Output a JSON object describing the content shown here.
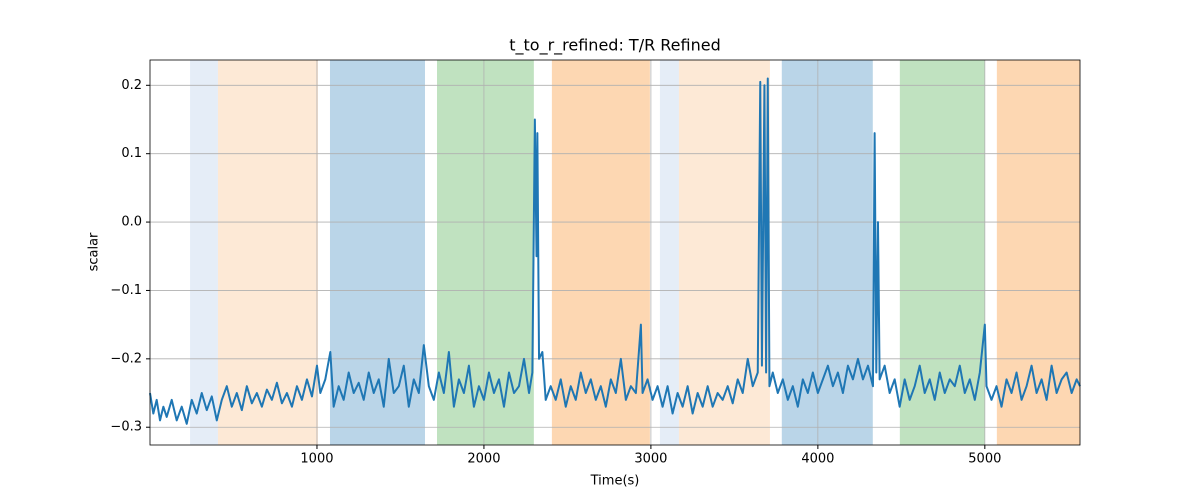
{
  "chart_data": {
    "type": "line",
    "title": "t_to_r_refined: T/R Refined",
    "x_label": "Time(s)",
    "y_label": "scalar",
    "xlim": [
      0,
      5570
    ],
    "ylim": [
      -0.326,
      0.237
    ],
    "xticks": [
      1000,
      2000,
      3000,
      4000,
      5000
    ],
    "yticks": [
      {
        "value": -0.3,
        "label": "−0.3"
      },
      {
        "value": -0.2,
        "label": "−0.2"
      },
      {
        "value": -0.1,
        "label": "−0.1"
      },
      {
        "value": 0.0,
        "label": "0.0"
      },
      0.1,
      0.2
    ],
    "grid": true,
    "spans": [
      {
        "start": 240,
        "end": 407,
        "color": "#e5edf7"
      },
      {
        "start": 407,
        "end": 1006,
        "color": "#fde9d6"
      },
      {
        "start": 1078,
        "end": 1647,
        "color": "#bad5e8"
      },
      {
        "start": 1719,
        "end": 2299,
        "color": "#c0e2c0"
      },
      {
        "start": 2407,
        "end": 2994,
        "color": "#fdd7b2"
      },
      {
        "start": 3054,
        "end": 3168,
        "color": "#e5edf7"
      },
      {
        "start": 3168,
        "end": 3713,
        "color": "#fde9d6"
      },
      {
        "start": 3784,
        "end": 4329,
        "color": "#bad5e8"
      },
      {
        "start": 4491,
        "end": 5000,
        "color": "#c0e2c0"
      },
      {
        "start": 5072,
        "end": 5570,
        "color": "#fdd7b2"
      }
    ],
    "series": [
      {
        "color": "#1f77b4",
        "x": [
          0,
          20,
          40,
          60,
          80,
          100,
          130,
          160,
          190,
          220,
          250,
          280,
          310,
          340,
          370,
          400,
          430,
          460,
          490,
          520,
          550,
          580,
          610,
          640,
          670,
          700,
          730,
          760,
          790,
          820,
          850,
          880,
          910,
          940,
          970,
          1000,
          1020,
          1050,
          1080,
          1100,
          1130,
          1160,
          1190,
          1220,
          1250,
          1280,
          1310,
          1340,
          1370,
          1400,
          1430,
          1460,
          1490,
          1520,
          1550,
          1580,
          1610,
          1640,
          1670,
          1700,
          1730,
          1760,
          1790,
          1820,
          1850,
          1880,
          1910,
          1940,
          1970,
          2000,
          2030,
          2060,
          2090,
          2120,
          2150,
          2180,
          2210,
          2240,
          2270,
          2290,
          2305,
          2315,
          2320,
          2330,
          2350,
          2370,
          2400,
          2430,
          2460,
          2490,
          2520,
          2550,
          2580,
          2610,
          2640,
          2670,
          2700,
          2730,
          2760,
          2790,
          2820,
          2850,
          2880,
          2910,
          2940,
          2950,
          2980,
          3010,
          3040,
          3070,
          3100,
          3130,
          3160,
          3190,
          3220,
          3250,
          3280,
          3310,
          3340,
          3370,
          3400,
          3430,
          3460,
          3490,
          3520,
          3550,
          3580,
          3610,
          3640,
          3655,
          3665,
          3680,
          3690,
          3700,
          3710,
          3730,
          3760,
          3790,
          3820,
          3850,
          3880,
          3910,
          3940,
          3970,
          4000,
          4030,
          4060,
          4090,
          4120,
          4150,
          4180,
          4210,
          4240,
          4270,
          4300,
          4330,
          4340,
          4350,
          4360,
          4370,
          4400,
          4430,
          4460,
          4490,
          4520,
          4550,
          4580,
          4610,
          4640,
          4670,
          4700,
          4730,
          4760,
          4790,
          4820,
          4850,
          4880,
          4910,
          4940,
          4970,
          5000,
          5010,
          5040,
          5070,
          5100,
          5130,
          5160,
          5190,
          5220,
          5250,
          5280,
          5310,
          5340,
          5370,
          5400,
          5430,
          5460,
          5490,
          5520,
          5550,
          5570
        ],
        "values": [
          -0.25,
          -0.28,
          -0.26,
          -0.29,
          -0.27,
          -0.285,
          -0.26,
          -0.29,
          -0.27,
          -0.295,
          -0.26,
          -0.28,
          -0.25,
          -0.275,
          -0.255,
          -0.29,
          -0.26,
          -0.24,
          -0.27,
          -0.25,
          -0.275,
          -0.24,
          -0.265,
          -0.25,
          -0.27,
          -0.245,
          -0.26,
          -0.235,
          -0.265,
          -0.25,
          -0.27,
          -0.24,
          -0.26,
          -0.23,
          -0.255,
          -0.21,
          -0.25,
          -0.23,
          -0.19,
          -0.27,
          -0.24,
          -0.26,
          -0.22,
          -0.25,
          -0.235,
          -0.26,
          -0.22,
          -0.25,
          -0.23,
          -0.27,
          -0.2,
          -0.25,
          -0.24,
          -0.21,
          -0.27,
          -0.23,
          -0.25,
          -0.18,
          -0.24,
          -0.26,
          -0.22,
          -0.25,
          -0.19,
          -0.27,
          -0.23,
          -0.25,
          -0.21,
          -0.27,
          -0.24,
          -0.26,
          -0.22,
          -0.25,
          -0.23,
          -0.27,
          -0.22,
          -0.25,
          -0.24,
          -0.2,
          -0.25,
          -0.22,
          0.15,
          -0.05,
          0.13,
          -0.2,
          -0.19,
          -0.26,
          -0.24,
          -0.26,
          -0.23,
          -0.27,
          -0.24,
          -0.26,
          -0.22,
          -0.25,
          -0.23,
          -0.26,
          -0.24,
          -0.27,
          -0.23,
          -0.25,
          -0.2,
          -0.26,
          -0.24,
          -0.25,
          -0.15,
          -0.25,
          -0.23,
          -0.26,
          -0.24,
          -0.27,
          -0.24,
          -0.28,
          -0.25,
          -0.27,
          -0.24,
          -0.28,
          -0.25,
          -0.27,
          -0.24,
          -0.27,
          -0.25,
          -0.26,
          -0.24,
          -0.265,
          -0.23,
          -0.25,
          -0.2,
          -0.24,
          -0.22,
          0.205,
          -0.21,
          0.2,
          -0.22,
          0.21,
          -0.24,
          -0.22,
          -0.25,
          -0.23,
          -0.26,
          -0.24,
          -0.27,
          -0.23,
          -0.25,
          -0.22,
          -0.25,
          -0.23,
          -0.21,
          -0.24,
          -0.22,
          -0.25,
          -0.21,
          -0.23,
          -0.2,
          -0.23,
          -0.21,
          -0.24,
          0.13,
          -0.22,
          0.0,
          -0.23,
          -0.21,
          -0.25,
          -0.23,
          -0.27,
          -0.23,
          -0.26,
          -0.24,
          -0.21,
          -0.25,
          -0.23,
          -0.26,
          -0.22,
          -0.25,
          -0.23,
          -0.24,
          -0.21,
          -0.25,
          -0.23,
          -0.26,
          -0.22,
          -0.15,
          -0.24,
          -0.26,
          -0.24,
          -0.27,
          -0.23,
          -0.25,
          -0.22,
          -0.26,
          -0.24,
          -0.21,
          -0.25,
          -0.23,
          -0.26,
          -0.21,
          -0.25,
          -0.23,
          -0.22,
          -0.25,
          -0.23,
          -0.24
        ]
      }
    ]
  }
}
